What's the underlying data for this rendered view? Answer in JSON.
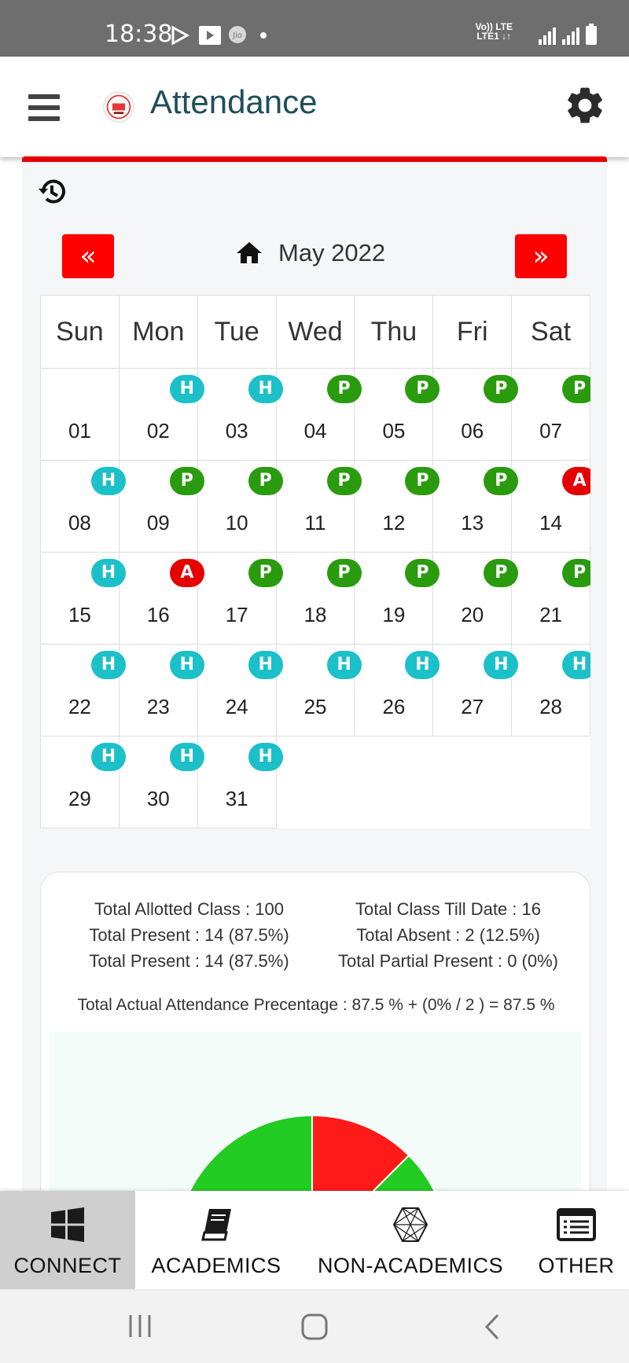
{
  "status_bar": {
    "time": "18:38",
    "network": [
      "Vo)) LTE",
      "LTE1 ↓↑"
    ]
  },
  "header": {
    "title": "Attendance"
  },
  "calendar": {
    "month_label": "May 2022",
    "prev_label": "«",
    "next_label": "»",
    "weekdays": [
      "Sun",
      "Mon",
      "Tue",
      "Wed",
      "Thu",
      "Fri",
      "Sat"
    ],
    "weeks": [
      [
        {
          "d": "01",
          "s": ""
        },
        {
          "d": "02",
          "s": "H"
        },
        {
          "d": "03",
          "s": "H"
        },
        {
          "d": "04",
          "s": "P"
        },
        {
          "d": "05",
          "s": "P"
        },
        {
          "d": "06",
          "s": "P"
        },
        {
          "d": "07",
          "s": "P"
        }
      ],
      [
        {
          "d": "08",
          "s": "H"
        },
        {
          "d": "09",
          "s": "P"
        },
        {
          "d": "10",
          "s": "P"
        },
        {
          "d": "11",
          "s": "P"
        },
        {
          "d": "12",
          "s": "P"
        },
        {
          "d": "13",
          "s": "P"
        },
        {
          "d": "14",
          "s": "A"
        }
      ],
      [
        {
          "d": "15",
          "s": "H"
        },
        {
          "d": "16",
          "s": "A"
        },
        {
          "d": "17",
          "s": "P"
        },
        {
          "d": "18",
          "s": "P"
        },
        {
          "d": "19",
          "s": "P"
        },
        {
          "d": "20",
          "s": "P"
        },
        {
          "d": "21",
          "s": "P"
        }
      ],
      [
        {
          "d": "22",
          "s": "H"
        },
        {
          "d": "23",
          "s": "H"
        },
        {
          "d": "24",
          "s": "H"
        },
        {
          "d": "25",
          "s": "H"
        },
        {
          "d": "26",
          "s": "H"
        },
        {
          "d": "27",
          "s": "H"
        },
        {
          "d": "28",
          "s": "H"
        }
      ],
      [
        {
          "d": "29",
          "s": "H"
        },
        {
          "d": "30",
          "s": "H"
        },
        {
          "d": "31",
          "s": "H"
        },
        null,
        null,
        null,
        null
      ]
    ]
  },
  "summary": {
    "total_allotted": "Total Allotted Class : 100",
    "total_till_date": "Total Class Till Date : 16",
    "total_present_1": "Total Present : 14 (87.5%)",
    "total_absent": "Total Absent : 2 (12.5%)",
    "total_present_2": "Total Present : 14 (87.5%)",
    "total_partial": "Total Partial Present : 0 (0%)",
    "actual": "Total Actual Attendance Precentage : 87.5 % + (0% / 2 ) = 87.5 %"
  },
  "pie": {
    "slices": [
      {
        "value": 87.5,
        "color": "#22cc22"
      },
      {
        "value": 12.5,
        "color": "#ff1a1a"
      }
    ]
  },
  "bottom_nav": [
    {
      "label": "CONNECT",
      "icon": "windows-icon",
      "active": true
    },
    {
      "label": "ACADEMICS",
      "icon": "book-icon",
      "active": false
    },
    {
      "label": "NON-ACADEMICS",
      "icon": "polyhedron-icon",
      "active": false
    },
    {
      "label": "OTHER",
      "icon": "list-icon",
      "active": false
    }
  ],
  "colors": {
    "holiday": "#1bc0c9",
    "present": "#2a9b0e",
    "absent": "#e60000",
    "accent": "#fe0000",
    "title": "#1f4e5a"
  }
}
